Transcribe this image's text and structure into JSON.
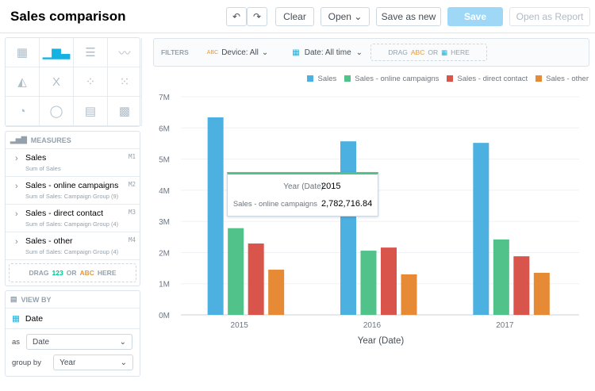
{
  "header": {
    "title": "Sales comparison",
    "undo": "↶",
    "redo": "↷",
    "clear": "Clear",
    "open": "Open",
    "save_as_new": "Save as new",
    "save": "Save",
    "open_as_report": "Open as Report"
  },
  "vis_types": [
    "table",
    "column",
    "bar",
    "line",
    "area",
    "headline",
    "scatter",
    "bubble",
    "pie",
    "donut",
    "treemap",
    "heatmap"
  ],
  "measures": {
    "title": "MEASURES",
    "items": [
      {
        "label": "Sales",
        "sub": "Sum of Sales",
        "id": "M1"
      },
      {
        "label": "Sales - online campaigns",
        "sub": "Sum of Sales: Campaign Group (9)",
        "id": "M2"
      },
      {
        "label": "Sales - direct contact",
        "sub": "Sum of Sales: Campaign Group (4)",
        "id": "M3"
      },
      {
        "label": "Sales - other",
        "sub": "Sum of Sales: Campaign Group (4)",
        "id": "M4"
      }
    ],
    "drag": {
      "a": "DRAG",
      "num": "123",
      "or": "OR",
      "abc": "ABC",
      "here": "HERE"
    }
  },
  "view_by": {
    "title": "VIEW BY",
    "attribute": "Date",
    "as_label": "as",
    "as_value": "Date",
    "group_label": "group by",
    "group_value": "Year"
  },
  "filters": {
    "label": "FILTERS",
    "device": "Device: All",
    "abc": "ABC",
    "date": "Date: All time",
    "drag": "DRAG",
    "or": "OR",
    "here": "HERE"
  },
  "tooltip": {
    "k1": "Year (Date)",
    "v1": "2015",
    "k2": "Sales - online campaigns",
    "v2": "2,782,716.84"
  },
  "chart_data": {
    "type": "bar",
    "categories": [
      "2015",
      "2016",
      "2017"
    ],
    "xlabel": "Year (Date)",
    "ylabel": "",
    "ylim": [
      0,
      7000000
    ],
    "yticks": [
      "0M",
      "1M",
      "2M",
      "3M",
      "4M",
      "5M",
      "6M",
      "7M"
    ],
    "grid": true,
    "legend": "top-right",
    "series": [
      {
        "name": "Sales",
        "color": "#4cb0e0",
        "values": [
          6340000,
          5570000,
          5520000
        ]
      },
      {
        "name": "Sales - online campaigns",
        "color": "#50c28a",
        "values": [
          2782716.84,
          2060000,
          2420000
        ]
      },
      {
        "name": "Sales - direct contact",
        "color": "#d9544a",
        "values": [
          2290000,
          2160000,
          1880000
        ]
      },
      {
        "name": "Sales - other",
        "color": "#e68a35",
        "values": [
          1450000,
          1300000,
          1350000
        ]
      }
    ]
  }
}
